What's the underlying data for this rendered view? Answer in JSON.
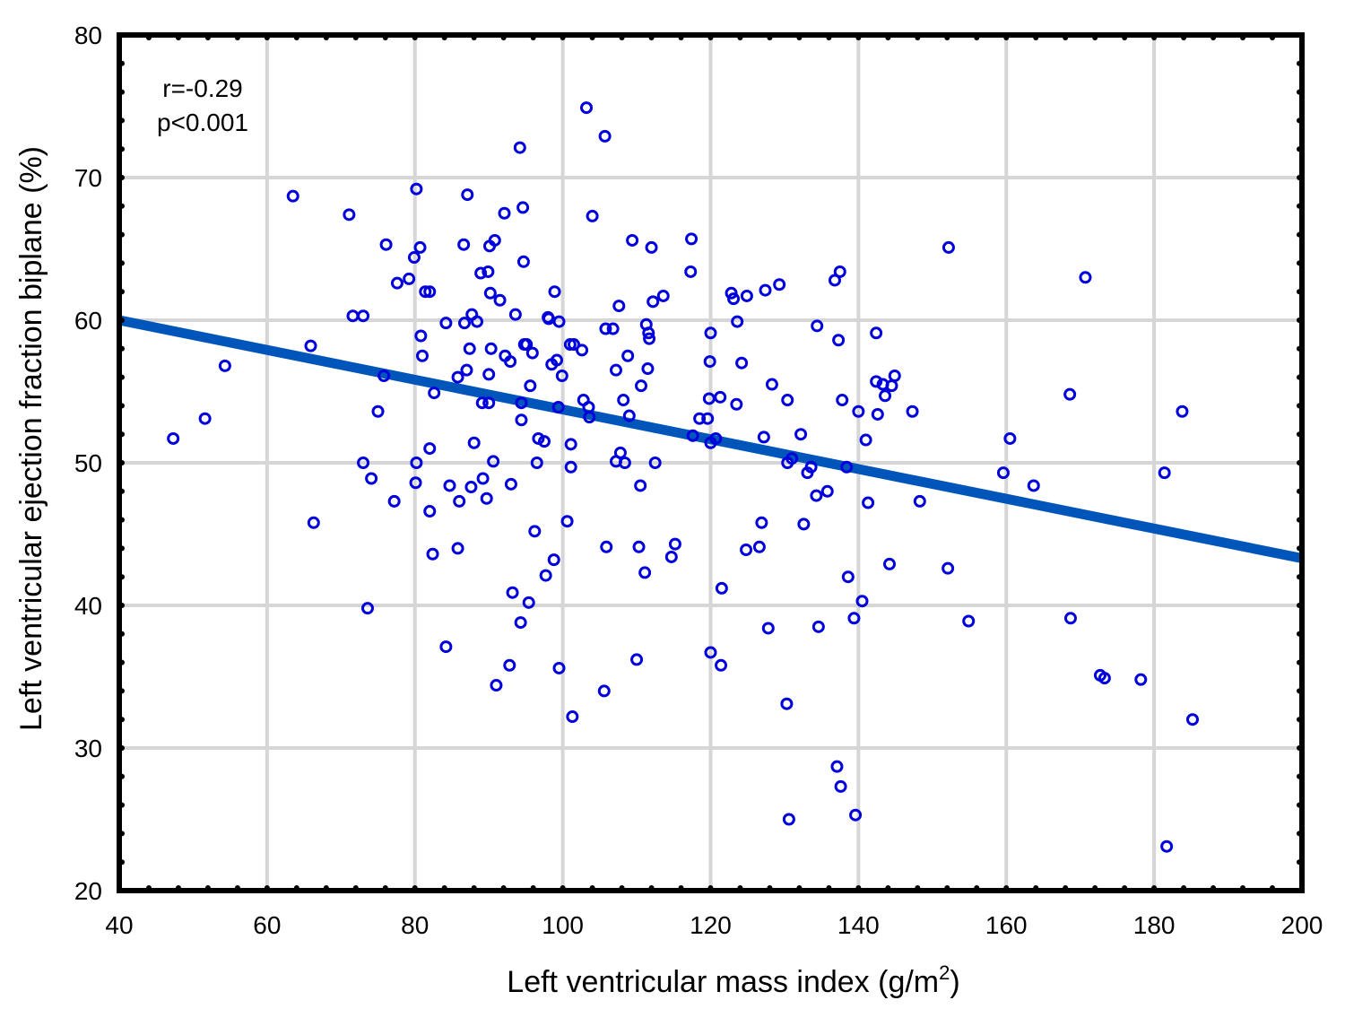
{
  "chart_data": {
    "type": "scatter",
    "title": "",
    "xlabel": "Left ventricular mass index (g/m",
    "xlabel_sup": "2",
    "xlabel_end": ")",
    "ylabel": "Left ventricular ejection fraction biplane (%)",
    "xlim": [
      40,
      200
    ],
    "ylim": [
      20,
      80
    ],
    "xticks": [
      "40",
      "60",
      "80",
      "100",
      "120",
      "140",
      "160",
      "180",
      "200"
    ],
    "yticks": [
      "20",
      "30",
      "40",
      "50",
      "60",
      "70",
      "80"
    ],
    "grid": true,
    "annotation": {
      "line1": "r=-0.29",
      "line2": "p<0.001"
    },
    "regression": {
      "x": [
        40,
        200
      ],
      "y": [
        60,
        43.3
      ]
    },
    "colors": {
      "marker": "#0000dd",
      "line": "#0055bb",
      "grid": "#d6d6d6",
      "axis": "#000000"
    },
    "points": [
      [
        47.3,
        51.7
      ],
      [
        51.6,
        53.1
      ],
      [
        54.3,
        56.8
      ],
      [
        63.5,
        68.7
      ],
      [
        65.9,
        58.2
      ],
      [
        66.3,
        45.8
      ],
      [
        71.1,
        67.4
      ],
      [
        71.6,
        60.3
      ],
      [
        73,
        60.3
      ],
      [
        73,
        50
      ],
      [
        73.6,
        39.8
      ],
      [
        74.1,
        48.9
      ],
      [
        75,
        53.6
      ],
      [
        75.8,
        56.1
      ],
      [
        76.1,
        65.3
      ],
      [
        77.2,
        47.3
      ],
      [
        77.6,
        62.6
      ],
      [
        79.2,
        62.9
      ],
      [
        79.9,
        64.4
      ],
      [
        80.2,
        69.2
      ],
      [
        80.1,
        48.6
      ],
      [
        80.2,
        50
      ],
      [
        80.7,
        65.1
      ],
      [
        80.8,
        58.9
      ],
      [
        81,
        57.5
      ],
      [
        81.4,
        62
      ],
      [
        82,
        46.6
      ],
      [
        82,
        62
      ],
      [
        82,
        51
      ],
      [
        82.4,
        43.6
      ],
      [
        82.6,
        54.9
      ],
      [
        84.2,
        59.8
      ],
      [
        84.2,
        37.1
      ],
      [
        84.7,
        48.4
      ],
      [
        85.8,
        56
      ],
      [
        85.8,
        44
      ],
      [
        86,
        47.3
      ],
      [
        86.6,
        65.3
      ],
      [
        86.7,
        59.8
      ],
      [
        87,
        56.5
      ],
      [
        87.1,
        68.8
      ],
      [
        87.4,
        58
      ],
      [
        87.6,
        48.3
      ],
      [
        87.7,
        60.4
      ],
      [
        88,
        51.4
      ],
      [
        88.4,
        59.9
      ],
      [
        88.9,
        63.3
      ],
      [
        89.1,
        54.2
      ],
      [
        89.2,
        48.9
      ],
      [
        89.7,
        47.5
      ],
      [
        89.9,
        63.4
      ],
      [
        90,
        56.2
      ],
      [
        90.1,
        65.2
      ],
      [
        90,
        54.2
      ],
      [
        90.2,
        61.9
      ],
      [
        90.3,
        58
      ],
      [
        90.6,
        50.1
      ],
      [
        90.8,
        65.6
      ],
      [
        91,
        34.4
      ],
      [
        91.5,
        61.4
      ],
      [
        92.1,
        67.5
      ],
      [
        92.2,
        57.5
      ],
      [
        92.8,
        35.8
      ],
      [
        92.9,
        57.1
      ],
      [
        93,
        48.5
      ],
      [
        93.2,
        40.9
      ],
      [
        93.6,
        60.4
      ],
      [
        94.2,
        72.1
      ],
      [
        94.4,
        54.2
      ],
      [
        94.4,
        53
      ],
      [
        94.3,
        38.8
      ],
      [
        94.6,
        67.9
      ],
      [
        94.7,
        64.1
      ],
      [
        94.8,
        58.3
      ],
      [
        95.1,
        58.3
      ],
      [
        95.4,
        40.2
      ],
      [
        95.6,
        55.4
      ],
      [
        95.9,
        57.7
      ],
      [
        96.2,
        45.2
      ],
      [
        96.5,
        50
      ],
      [
        96.7,
        51.7
      ],
      [
        97.5,
        51.5
      ],
      [
        97.7,
        42.1
      ],
      [
        98,
        60.2
      ],
      [
        98.1,
        60.1
      ],
      [
        98.5,
        56.9
      ],
      [
        98.8,
        43.2
      ],
      [
        98.9,
        62
      ],
      [
        99.2,
        57.2
      ],
      [
        99.4,
        53.9
      ],
      [
        99.5,
        59.9
      ],
      [
        99.5,
        35.6
      ],
      [
        99.9,
        56.1
      ],
      [
        100.6,
        45.9
      ],
      [
        101,
        58.3
      ],
      [
        101.1,
        51.3
      ],
      [
        101.1,
        49.7
      ],
      [
        101.3,
        32.2
      ],
      [
        101.5,
        58.3
      ],
      [
        102.6,
        57.9
      ],
      [
        102.8,
        54.4
      ],
      [
        103.2,
        74.9
      ],
      [
        103.6,
        53.2
      ],
      [
        103.5,
        53.9
      ],
      [
        104,
        67.3
      ],
      [
        105.6,
        34
      ],
      [
        105.7,
        72.9
      ],
      [
        105.9,
        44.1
      ],
      [
        105.8,
        59.4
      ],
      [
        106.8,
        59.4
      ],
      [
        107.2,
        56.5
      ],
      [
        107.2,
        50.1
      ],
      [
        107.6,
        61
      ],
      [
        107.8,
        50.7
      ],
      [
        108.2,
        54.4
      ],
      [
        108.4,
        50
      ],
      [
        108.8,
        57.5
      ],
      [
        109,
        53.3
      ],
      [
        109.4,
        65.6
      ],
      [
        110,
        36.2
      ],
      [
        110.3,
        44.1
      ],
      [
        110.5,
        48.4
      ],
      [
        110.6,
        55.4
      ],
      [
        111.1,
        42.3
      ],
      [
        111.3,
        59.7
      ],
      [
        111.5,
        56.6
      ],
      [
        111.6,
        59.1
      ],
      [
        111.7,
        58.7
      ],
      [
        112,
        65.1
      ],
      [
        112.2,
        61.3
      ],
      [
        112.5,
        50
      ],
      [
        113.6,
        61.7
      ],
      [
        114.7,
        43.4
      ],
      [
        115.2,
        44.3
      ],
      [
        117.3,
        63.4
      ],
      [
        117.4,
        65.7
      ],
      [
        117.6,
        51.9
      ],
      [
        118.5,
        53.1
      ],
      [
        119.6,
        53.1
      ],
      [
        119.8,
        54.5
      ],
      [
        119.9,
        57.1
      ],
      [
        120,
        36.7
      ],
      [
        120,
        59.1
      ],
      [
        120,
        51.4
      ],
      [
        120.7,
        51.7
      ],
      [
        121.3,
        54.6
      ],
      [
        121.4,
        35.8
      ],
      [
        121.5,
        41.2
      ],
      [
        122.8,
        61.9
      ],
      [
        123.1,
        61.5
      ],
      [
        123.5,
        54.1
      ],
      [
        123.6,
        59.9
      ],
      [
        124.2,
        57
      ],
      [
        124.8,
        43.9
      ],
      [
        124.9,
        61.7
      ],
      [
        126.6,
        44.1
      ],
      [
        126.9,
        45.8
      ],
      [
        127.2,
        51.8
      ],
      [
        127.4,
        62.1
      ],
      [
        127.8,
        38.4
      ],
      [
        128.3,
        55.5
      ],
      [
        129.3,
        62.5
      ],
      [
        130.3,
        33.1
      ],
      [
        130.4,
        54.4
      ],
      [
        130.4,
        50
      ],
      [
        130.6,
        25
      ],
      [
        131,
        50.3
      ],
      [
        132.2,
        52
      ],
      [
        132.6,
        45.7
      ],
      [
        133.1,
        49.3
      ],
      [
        133.6,
        49.7
      ],
      [
        134.3,
        47.7
      ],
      [
        134.4,
        59.6
      ],
      [
        134.6,
        38.5
      ],
      [
        135.8,
        48
      ],
      [
        136.8,
        62.8
      ],
      [
        137.1,
        28.7
      ],
      [
        137.3,
        58.6
      ],
      [
        137.5,
        63.4
      ],
      [
        137.6,
        27.3
      ],
      [
        137.8,
        54.4
      ],
      [
        138.4,
        49.7
      ],
      [
        138.6,
        42
      ],
      [
        139.4,
        39.1
      ],
      [
        139.6,
        25.3
      ],
      [
        140,
        53.6
      ],
      [
        140.5,
        40.3
      ],
      [
        141,
        51.6
      ],
      [
        141.3,
        47.2
      ],
      [
        142.4,
        59.1
      ],
      [
        142.4,
        55.7
      ],
      [
        142.6,
        53.4
      ],
      [
        143.3,
        55.5
      ],
      [
        143.6,
        54.7
      ],
      [
        144.2,
        42.9
      ],
      [
        144.5,
        55.4
      ],
      [
        144.9,
        56.1
      ],
      [
        147.3,
        53.6
      ],
      [
        148.3,
        47.3
      ],
      [
        152.2,
        65.1
      ],
      [
        152.1,
        42.6
      ],
      [
        154.9,
        38.9
      ],
      [
        159.6,
        49.3
      ],
      [
        160.5,
        51.7
      ],
      [
        163.7,
        48.4
      ],
      [
        168.6,
        54.8
      ],
      [
        168.7,
        39.1
      ],
      [
        170.7,
        63
      ],
      [
        172.7,
        35.1
      ],
      [
        173.3,
        34.9
      ],
      [
        178.2,
        34.8
      ],
      [
        181.4,
        49.3
      ],
      [
        181.7,
        23.1
      ],
      [
        183.8,
        53.6
      ],
      [
        185.2,
        32
      ]
    ]
  }
}
